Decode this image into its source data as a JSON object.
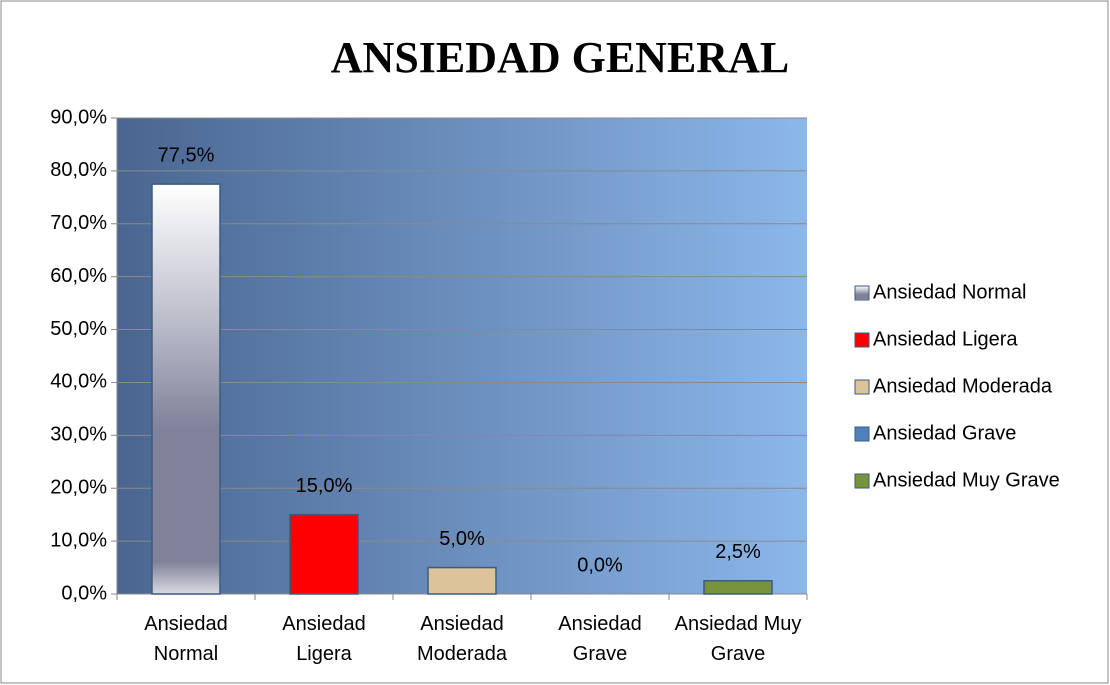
{
  "chart_data": {
    "type": "bar",
    "title": "ANSIEDAD GENERAL",
    "categories": [
      "Ansiedad Normal",
      "Ansiedad Ligera",
      "Ansiedad Moderada",
      "Ansiedad Grave",
      "Ansiedad Muy Grave"
    ],
    "values": [
      77.5,
      15.0,
      5.0,
      0.0,
      2.5
    ],
    "value_labels": [
      "77,5%",
      "15,0%",
      "5,0%",
      "0,0%",
      "2,5%"
    ],
    "colors": [
      "#8a8da3",
      "#ff0000",
      "#dcc39a",
      "#4f81bd",
      "#77933c"
    ],
    "ylim": [
      0,
      90
    ],
    "yticks": [
      {
        "value": 0,
        "label": "0,0%"
      },
      {
        "value": 10,
        "label": "10,0%"
      },
      {
        "value": 20,
        "label": "20,0%"
      },
      {
        "value": 30,
        "label": "30,0%"
      },
      {
        "value": 40,
        "label": "40,0%"
      },
      {
        "value": 50,
        "label": "50,0%"
      },
      {
        "value": 60,
        "label": "60,0%"
      },
      {
        "value": 70,
        "label": "70,0%"
      },
      {
        "value": 80,
        "label": "80,0%"
      },
      {
        "value": 90,
        "label": "90,0%"
      }
    ],
    "grid": true,
    "legend": "right"
  }
}
